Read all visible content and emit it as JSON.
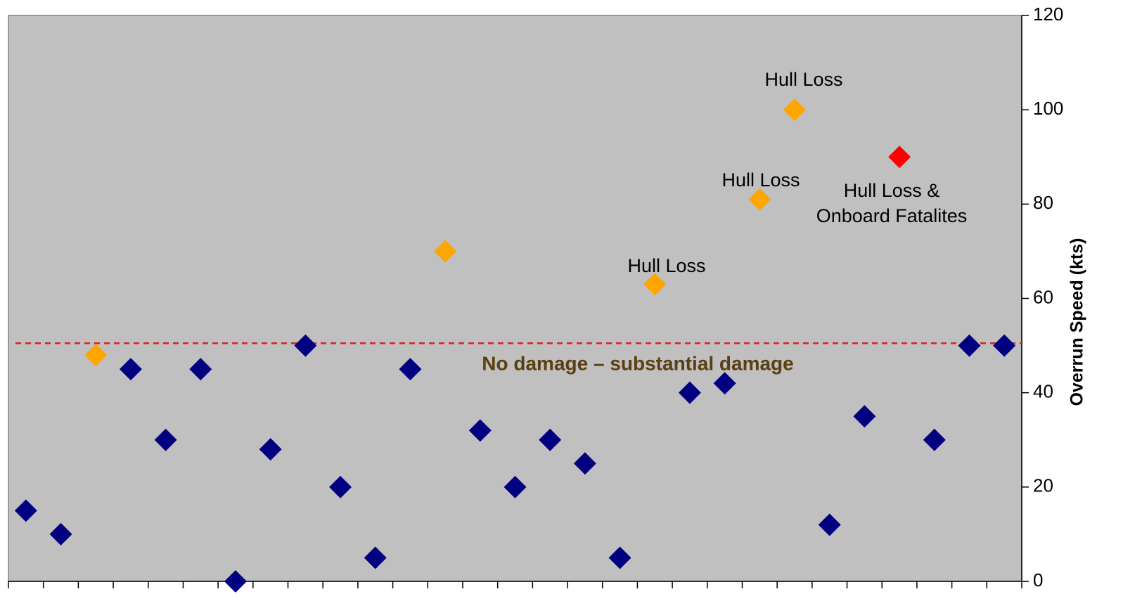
{
  "chart_data": {
    "type": "scatter",
    "categories": [
      null,
      null,
      null,
      null,
      null,
      null,
      null,
      null,
      null,
      null,
      null,
      null,
      null,
      null,
      null,
      null,
      null,
      null,
      null,
      null,
      null,
      null,
      null,
      null,
      null,
      null,
      null,
      null,
      null
    ],
    "values": [
      15,
      10,
      48,
      45,
      30,
      45,
      0,
      28,
      50,
      20,
      5,
      45,
      70,
      32,
      20,
      30,
      25,
      5,
      63,
      40,
      42,
      81,
      100,
      12,
      35,
      90,
      30,
      50,
      50
    ],
    "colors": [
      "#000080",
      "#000080",
      "#ffa500",
      "#000080",
      "#000080",
      "#000080",
      "#000080",
      "#000080",
      "#000080",
      "#000080",
      "#000080",
      "#000080",
      "#ffa500",
      "#000080",
      "#000080",
      "#000080",
      "#000080",
      "#000080",
      "#ffa500",
      "#000080",
      "#000080",
      "#ffa500",
      "#ffa500",
      "#000080",
      "#000080",
      "#ff0000",
      "#000080",
      "#000080",
      "#000080"
    ],
    "ylabel": "Overrun Speed (kts)",
    "ylim": [
      0,
      120
    ],
    "yticks": [
      0,
      20,
      40,
      60,
      80,
      100,
      120
    ],
    "reference_line": {
      "value": 50.5,
      "label": "No damage – substantial damage",
      "color": "#e02020"
    },
    "annotations": [
      [
        "Hull Loss"
      ],
      [
        "Hull Loss"
      ],
      [
        "Hull Loss"
      ],
      [
        "Hull Loss &",
        "Onboard Fatalites"
      ]
    ]
  }
}
